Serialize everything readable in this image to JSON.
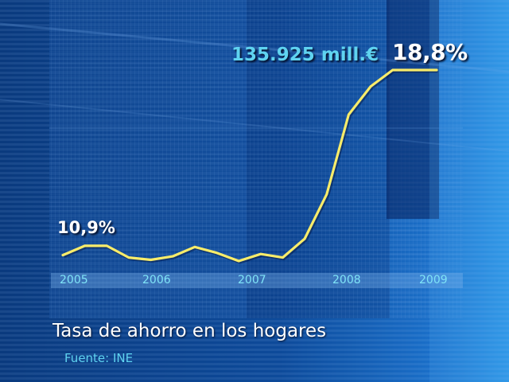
{
  "chart_data": {
    "type": "line",
    "title": "Tasa de ahorro en los hogares",
    "source": "Fuente: INE",
    "x_tick_labels": [
      "2005",
      "2006",
      "2007",
      "2008",
      "2009"
    ],
    "series": [
      {
        "color": "#f8ec6a",
        "x": [
          2005.0,
          2005.25,
          2005.5,
          2005.75,
          2006.0,
          2006.25,
          2006.5,
          2006.75,
          2007.0,
          2007.25,
          2007.5,
          2007.75,
          2008.0,
          2008.25,
          2008.5,
          2008.75,
          2009.0,
          2009.25
        ],
        "y": [
          10.9,
          11.3,
          11.3,
          10.8,
          10.7,
          10.85,
          11.25,
          11.0,
          10.65,
          10.95,
          10.8,
          11.6,
          13.5,
          16.9,
          18.1,
          18.8,
          18.8,
          18.8
        ]
      }
    ],
    "annotations": {
      "start_value": "10,9%",
      "end_amount": "135.925 mill.€",
      "end_value": "18,8%"
    }
  }
}
